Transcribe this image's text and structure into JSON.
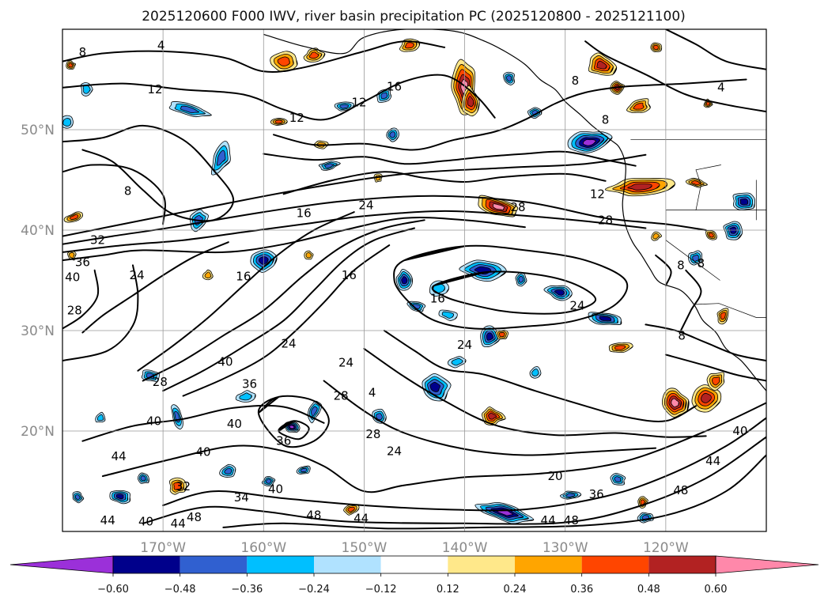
{
  "chart_data": {
    "type": "contour_map",
    "title": "2025120600 F000 IWV, river basin precipitation PC (2025120800 - 2025121100)",
    "region": "North Pacific",
    "lon_range": [
      -180,
      -110
    ],
    "lat_range": [
      10,
      60
    ],
    "lat_ticks": [
      {
        "value": 20,
        "label": "20°N"
      },
      {
        "value": 30,
        "label": "30°N"
      },
      {
        "value": 40,
        "label": "40°N"
      },
      {
        "value": 50,
        "label": "50°N"
      }
    ],
    "lon_ticks": [
      {
        "value": -170,
        "label": "170°W"
      },
      {
        "value": -160,
        "label": "160°W"
      },
      {
        "value": -150,
        "label": "150°W"
      },
      {
        "value": -140,
        "label": "140°W"
      },
      {
        "value": -130,
        "label": "130°W"
      },
      {
        "value": -120,
        "label": "120°W"
      }
    ],
    "grid": true,
    "colorbar": {
      "position": "bottom",
      "extend": "both",
      "boundaries": [
        -0.72,
        -0.6,
        -0.48,
        -0.36,
        -0.24,
        -0.12,
        0.12,
        0.24,
        0.36,
        0.48,
        0.6,
        0.72
      ],
      "colors": [
        "#9b30d9",
        "#00008b",
        "#3060d0",
        "#00bfff",
        "#b0e2ff",
        "#ffffff",
        "#ffe88a",
        "#ffa500",
        "#ff4500",
        "#b22222",
        "#ff88aa",
        "#ff88aa"
      ],
      "under_color": "#9b30d9",
      "over_color": "#ff88aa",
      "tick_values": [
        -0.6,
        -0.48,
        -0.36,
        -0.24,
        -0.12,
        0.12,
        0.24,
        0.36,
        0.48,
        0.6
      ],
      "tick_labels": [
        "−0.60",
        "−0.48",
        "−0.36",
        "−0.24",
        "−0.12",
        "0.12",
        "0.24",
        "0.36",
        "0.48",
        "0.60"
      ]
    },
    "iwv_contour_labels": [
      {
        "text": "8",
        "lon": -178.0,
        "lat": 57.7
      },
      {
        "text": "4",
        "lon": -170.2,
        "lat": 58.4
      },
      {
        "text": "12",
        "lon": -170.8,
        "lat": 54.0
      },
      {
        "text": "12",
        "lon": -156.7,
        "lat": 51.2
      },
      {
        "text": "12",
        "lon": -150.5,
        "lat": 52.7
      },
      {
        "text": "16",
        "lon": -147.0,
        "lat": 54.3
      },
      {
        "text": "8",
        "lon": -129.0,
        "lat": 54.9
      },
      {
        "text": "8",
        "lon": -126.0,
        "lat": 51.0
      },
      {
        "text": "4",
        "lon": -114.5,
        "lat": 54.2
      },
      {
        "text": "8",
        "lon": -173.5,
        "lat": 43.9
      },
      {
        "text": "16",
        "lon": -156.0,
        "lat": 41.7
      },
      {
        "text": "24",
        "lon": -149.8,
        "lat": 42.5
      },
      {
        "text": "12",
        "lon": -126.8,
        "lat": 43.6
      },
      {
        "text": "28",
        "lon": -126.0,
        "lat": 41.0
      },
      {
        "text": "28",
        "lon": -134.7,
        "lat": 42.3
      },
      {
        "text": "32",
        "lon": -176.5,
        "lat": 39.0
      },
      {
        "text": "36",
        "lon": -178.0,
        "lat": 36.8
      },
      {
        "text": "40",
        "lon": -179.0,
        "lat": 35.3
      },
      {
        "text": "24",
        "lon": -172.6,
        "lat": 35.5
      },
      {
        "text": "16",
        "lon": -162.0,
        "lat": 35.4
      },
      {
        "text": "16",
        "lon": -151.5,
        "lat": 35.5
      },
      {
        "text": "16",
        "lon": -142.7,
        "lat": 33.2
      },
      {
        "text": "24",
        "lon": -128.8,
        "lat": 32.5
      },
      {
        "text": "28",
        "lon": -178.8,
        "lat": 32.0
      },
      {
        "text": "8",
        "lon": -118.4,
        "lat": 29.5
      },
      {
        "text": "8",
        "lon": -116.5,
        "lat": 36.7
      },
      {
        "text": "8",
        "lon": -118.5,
        "lat": 36.5
      },
      {
        "text": "24",
        "lon": -140.0,
        "lat": 28.6
      },
      {
        "text": "24",
        "lon": -157.5,
        "lat": 28.7
      },
      {
        "text": "24",
        "lon": -151.8,
        "lat": 26.8
      },
      {
        "text": "40",
        "lon": -163.8,
        "lat": 26.9
      },
      {
        "text": "36",
        "lon": -161.4,
        "lat": 24.7
      },
      {
        "text": "28",
        "lon": -170.3,
        "lat": 24.9
      },
      {
        "text": "28",
        "lon": -152.3,
        "lat": 23.5
      },
      {
        "text": "4",
        "lon": -149.2,
        "lat": 23.8
      },
      {
        "text": "40",
        "lon": -170.9,
        "lat": 21.0
      },
      {
        "text": "40",
        "lon": -162.9,
        "lat": 20.7
      },
      {
        "text": "40",
        "lon": -166.0,
        "lat": 17.9
      },
      {
        "text": "36",
        "lon": -158.0,
        "lat": 19.0
      },
      {
        "text": "28",
        "lon": -149.1,
        "lat": 19.7
      },
      {
        "text": "24",
        "lon": -147.0,
        "lat": 18.0
      },
      {
        "text": "44",
        "lon": -174.4,
        "lat": 17.5
      },
      {
        "text": "40",
        "lon": -112.6,
        "lat": 20.0
      },
      {
        "text": "44",
        "lon": -115.3,
        "lat": 17.0
      },
      {
        "text": "20",
        "lon": -131.0,
        "lat": 15.5
      },
      {
        "text": "48",
        "lon": -118.5,
        "lat": 14.1
      },
      {
        "text": "36",
        "lon": -126.9,
        "lat": 13.7
      },
      {
        "text": "40",
        "lon": -158.8,
        "lat": 14.2
      },
      {
        "text": "32",
        "lon": -168.0,
        "lat": 14.5
      },
      {
        "text": "34",
        "lon": -162.2,
        "lat": 13.4
      },
      {
        "text": "44",
        "lon": -175.5,
        "lat": 11.1
      },
      {
        "text": "40",
        "lon": -171.7,
        "lat": 11.0
      },
      {
        "text": "44",
        "lon": -168.5,
        "lat": 10.8
      },
      {
        "text": "48",
        "lon": -166.9,
        "lat": 11.4
      },
      {
        "text": "48",
        "lon": -155.0,
        "lat": 11.6
      },
      {
        "text": "44",
        "lon": -150.3,
        "lat": 11.3
      },
      {
        "text": "44",
        "lon": -131.7,
        "lat": 11.1
      },
      {
        "text": "48",
        "lon": -129.4,
        "lat": 11.1
      }
    ],
    "precip_pc_patches": [
      {
        "lon": -177.6,
        "lat": 54.0,
        "rlon": 0.6,
        "rlat": 0.7,
        "value": -0.24
      },
      {
        "lon": -167.4,
        "lat": 52.0,
        "rlon": 2.2,
        "rlat": 0.6,
        "value": -0.36
      },
      {
        "lon": -164.2,
        "lat": 47.2,
        "rlon": 0.8,
        "rlat": 1.7,
        "value": -0.36
      },
      {
        "lon": -166.5,
        "lat": 41.0,
        "rlon": 0.8,
        "rlat": 1.2,
        "value": -0.36
      },
      {
        "lon": -160.0,
        "lat": 37.0,
        "rlon": 1.2,
        "rlat": 1.2,
        "value": -0.48
      },
      {
        "lon": -148.0,
        "lat": 53.4,
        "rlon": 0.8,
        "rlat": 0.6,
        "value": -0.36
      },
      {
        "lon": -152.0,
        "lat": 52.3,
        "rlon": 1.0,
        "rlat": 0.4,
        "value": -0.36
      },
      {
        "lon": -147.2,
        "lat": 49.5,
        "rlon": 0.6,
        "rlat": 0.7,
        "value": -0.36
      },
      {
        "lon": -153.5,
        "lat": 46.4,
        "rlon": 1.0,
        "rlat": 0.4,
        "value": -0.36
      },
      {
        "lon": -135.6,
        "lat": 55.1,
        "rlon": 0.6,
        "rlat": 0.6,
        "value": -0.36
      },
      {
        "lon": -127.6,
        "lat": 48.7,
        "rlon": 2.1,
        "rlat": 1.2,
        "value": -0.6
      },
      {
        "lon": -133.0,
        "lat": 51.7,
        "rlon": 0.7,
        "rlat": 0.6,
        "value": -0.36
      },
      {
        "lon": -112.2,
        "lat": 42.8,
        "rlon": 1.3,
        "rlat": 0.9,
        "value": -0.48
      },
      {
        "lon": -113.3,
        "lat": 40.0,
        "rlon": 0.9,
        "rlat": 1.1,
        "value": -0.48
      },
      {
        "lon": -146.0,
        "lat": 35.0,
        "rlon": 0.8,
        "rlat": 1.0,
        "value": -0.48
      },
      {
        "lon": -142.6,
        "lat": 34.2,
        "rlon": 0.9,
        "rlat": 0.7,
        "value": -0.24
      },
      {
        "lon": -138.2,
        "lat": 36.0,
        "rlon": 2.0,
        "rlat": 1.0,
        "value": -0.48
      },
      {
        "lon": -134.4,
        "lat": 35.1,
        "rlon": 0.6,
        "rlat": 0.6,
        "value": -0.36
      },
      {
        "lon": -130.5,
        "lat": 33.8,
        "rlon": 1.4,
        "rlat": 0.8,
        "value": -0.48
      },
      {
        "lon": -126.0,
        "lat": 31.2,
        "rlon": 1.8,
        "rlat": 0.6,
        "value": -0.48
      },
      {
        "lon": -137.5,
        "lat": 29.4,
        "rlon": 1.0,
        "rlat": 1.2,
        "value": -0.48
      },
      {
        "lon": -141.7,
        "lat": 31.6,
        "rlon": 1.0,
        "rlat": 0.5,
        "value": -0.24
      },
      {
        "lon": -144.8,
        "lat": 32.4,
        "rlon": 0.9,
        "rlat": 0.5,
        "value": -0.36
      },
      {
        "lon": -143.0,
        "lat": 24.4,
        "rlon": 1.5,
        "rlat": 1.2,
        "value": -0.48
      },
      {
        "lon": -140.7,
        "lat": 26.9,
        "rlon": 0.9,
        "rlat": 0.5,
        "value": -0.24
      },
      {
        "lon": -133.0,
        "lat": 25.8,
        "rlon": 0.5,
        "rlat": 0.6,
        "value": -0.24
      },
      {
        "lon": -148.5,
        "lat": 21.4,
        "rlon": 0.7,
        "rlat": 0.7,
        "value": -0.36
      },
      {
        "lon": -155.0,
        "lat": 22.0,
        "rlon": 0.6,
        "rlat": 1.1,
        "value": -0.36
      },
      {
        "lon": -157.2,
        "lat": 20.4,
        "rlon": 0.8,
        "rlat": 0.6,
        "value": -0.6
      },
      {
        "lon": -161.8,
        "lat": 23.4,
        "rlon": 1.0,
        "rlat": 0.6,
        "value": -0.24
      },
      {
        "lon": -168.6,
        "lat": 21.4,
        "rlon": 0.5,
        "rlat": 1.1,
        "value": -0.36
      },
      {
        "lon": -171.3,
        "lat": 25.5,
        "rlon": 0.9,
        "rlat": 0.6,
        "value": -0.36
      },
      {
        "lon": -174.3,
        "lat": 13.5,
        "rlon": 1.2,
        "rlat": 0.7,
        "value": -0.48
      },
      {
        "lon": -172.0,
        "lat": 15.3,
        "rlon": 0.6,
        "rlat": 0.6,
        "value": -0.36
      },
      {
        "lon": -163.5,
        "lat": 16.0,
        "rlon": 0.8,
        "rlat": 0.6,
        "value": -0.36
      },
      {
        "lon": -159.5,
        "lat": 15.0,
        "rlon": 0.6,
        "rlat": 0.5,
        "value": -0.36
      },
      {
        "lon": -136.0,
        "lat": 11.9,
        "rlon": 2.8,
        "rlat": 0.9,
        "value": -0.6
      },
      {
        "lon": -129.5,
        "lat": 13.6,
        "rlon": 1.0,
        "rlat": 0.4,
        "value": -0.36
      },
      {
        "lon": -124.8,
        "lat": 15.2,
        "rlon": 0.8,
        "rlat": 0.5,
        "value": -0.36
      },
      {
        "lon": -122.0,
        "lat": 11.4,
        "rlon": 0.8,
        "rlat": 0.5,
        "value": -0.36
      },
      {
        "lon": -176.2,
        "lat": 21.3,
        "rlon": 0.5,
        "rlat": 0.5,
        "value": -0.24
      },
      {
        "lon": -178.5,
        "lat": 13.4,
        "rlon": 0.6,
        "rlat": 0.5,
        "value": -0.36
      },
      {
        "lon": -156.0,
        "lat": 16.1,
        "rlon": 0.8,
        "rlat": 0.4,
        "value": -0.36
      },
      {
        "lon": -117.0,
        "lat": 37.2,
        "rlon": 0.7,
        "rlat": 0.7,
        "value": -0.36
      },
      {
        "lon": -179.5,
        "lat": 50.7,
        "rlon": 0.7,
        "rlat": 0.6,
        "value": -0.24
      },
      {
        "lon": -179.2,
        "lat": 56.4,
        "rlon": 0.5,
        "rlat": 0.4,
        "value": 0.36
      },
      {
        "lon": -158.0,
        "lat": 56.8,
        "rlon": 1.4,
        "rlat": 0.9,
        "value": 0.36
      },
      {
        "lon": -155.0,
        "lat": 57.4,
        "rlon": 1.0,
        "rlat": 0.6,
        "value": 0.36
      },
      {
        "lon": -158.5,
        "lat": 50.8,
        "rlon": 0.9,
        "rlat": 0.4,
        "value": 0.36
      },
      {
        "lon": -154.3,
        "lat": 48.5,
        "rlon": 0.8,
        "rlat": 0.4,
        "value": 0.24
      },
      {
        "lon": -145.5,
        "lat": 58.4,
        "rlon": 1.0,
        "rlat": 0.6,
        "value": 0.36
      },
      {
        "lon": -140.0,
        "lat": 54.2,
        "rlon": 1.2,
        "rlat": 2.6,
        "value": 0.6
      },
      {
        "lon": -139.4,
        "lat": 52.8,
        "rlon": 0.8,
        "rlat": 1.4,
        "value": 0.48
      },
      {
        "lon": -126.4,
        "lat": 56.4,
        "rlon": 1.3,
        "rlat": 1.1,
        "value": 0.48
      },
      {
        "lon": -124.8,
        "lat": 54.2,
        "rlon": 0.7,
        "rlat": 0.6,
        "value": 0.48
      },
      {
        "lon": -122.7,
        "lat": 52.3,
        "rlon": 1.2,
        "rlat": 0.7,
        "value": 0.36
      },
      {
        "lon": -121.0,
        "lat": 58.2,
        "rlon": 0.6,
        "rlat": 0.5,
        "value": 0.36
      },
      {
        "lon": -115.8,
        "lat": 52.6,
        "rlon": 0.4,
        "rlat": 0.4,
        "value": 0.36
      },
      {
        "lon": -136.6,
        "lat": 42.3,
        "rlon": 2.2,
        "rlat": 0.9,
        "value": 0.6
      },
      {
        "lon": -122.6,
        "lat": 44.3,
        "rlon": 3.2,
        "rlat": 0.8,
        "value": 0.48
      },
      {
        "lon": -117.0,
        "lat": 44.7,
        "rlon": 1.0,
        "rlat": 0.4,
        "value": 0.36
      },
      {
        "lon": -178.8,
        "lat": 41.3,
        "rlon": 1.0,
        "rlat": 0.4,
        "value": 0.36
      },
      {
        "lon": -136.3,
        "lat": 29.6,
        "rlon": 0.6,
        "rlat": 0.5,
        "value": 0.36
      },
      {
        "lon": -124.6,
        "lat": 28.3,
        "rlon": 1.2,
        "rlat": 0.5,
        "value": 0.36
      },
      {
        "lon": -137.3,
        "lat": 21.5,
        "rlon": 1.2,
        "rlat": 0.8,
        "value": 0.48
      },
      {
        "lon": -119.1,
        "lat": 22.8,
        "rlon": 1.2,
        "rlat": 1.6,
        "value": 0.6
      },
      {
        "lon": -116.0,
        "lat": 23.3,
        "rlon": 1.5,
        "rlat": 1.4,
        "value": 0.48
      },
      {
        "lon": -115.0,
        "lat": 25.0,
        "rlon": 1.0,
        "rlat": 0.8,
        "value": 0.36
      },
      {
        "lon": -168.6,
        "lat": 14.5,
        "rlon": 0.8,
        "rlat": 0.8,
        "value": 0.36
      },
      {
        "lon": -151.3,
        "lat": 12.2,
        "rlon": 0.8,
        "rlat": 0.5,
        "value": 0.36
      },
      {
        "lon": -122.3,
        "lat": 12.9,
        "rlon": 0.5,
        "rlat": 0.6,
        "value": 0.36
      },
      {
        "lon": -114.3,
        "lat": 31.5,
        "rlon": 0.6,
        "rlat": 0.8,
        "value": 0.36
      },
      {
        "lon": -115.5,
        "lat": 39.5,
        "rlon": 0.6,
        "rlat": 0.4,
        "value": 0.36
      },
      {
        "lon": -165.5,
        "lat": 35.5,
        "rlon": 0.5,
        "rlat": 0.5,
        "value": 0.24
      },
      {
        "lon": -155.5,
        "lat": 37.5,
        "rlon": 0.4,
        "rlat": 0.4,
        "value": 0.24
      },
      {
        "lon": -121.0,
        "lat": 39.4,
        "rlon": 0.5,
        "rlat": 0.4,
        "value": 0.24
      },
      {
        "lon": -179.1,
        "lat": 37.5,
        "rlon": 0.4,
        "rlat": 0.5,
        "value": 0.24
      },
      {
        "lon": -148.6,
        "lat": 45.2,
        "rlon": 0.4,
        "rlat": 0.4,
        "value": 0.24
      }
    ],
    "land_label": ""
  }
}
